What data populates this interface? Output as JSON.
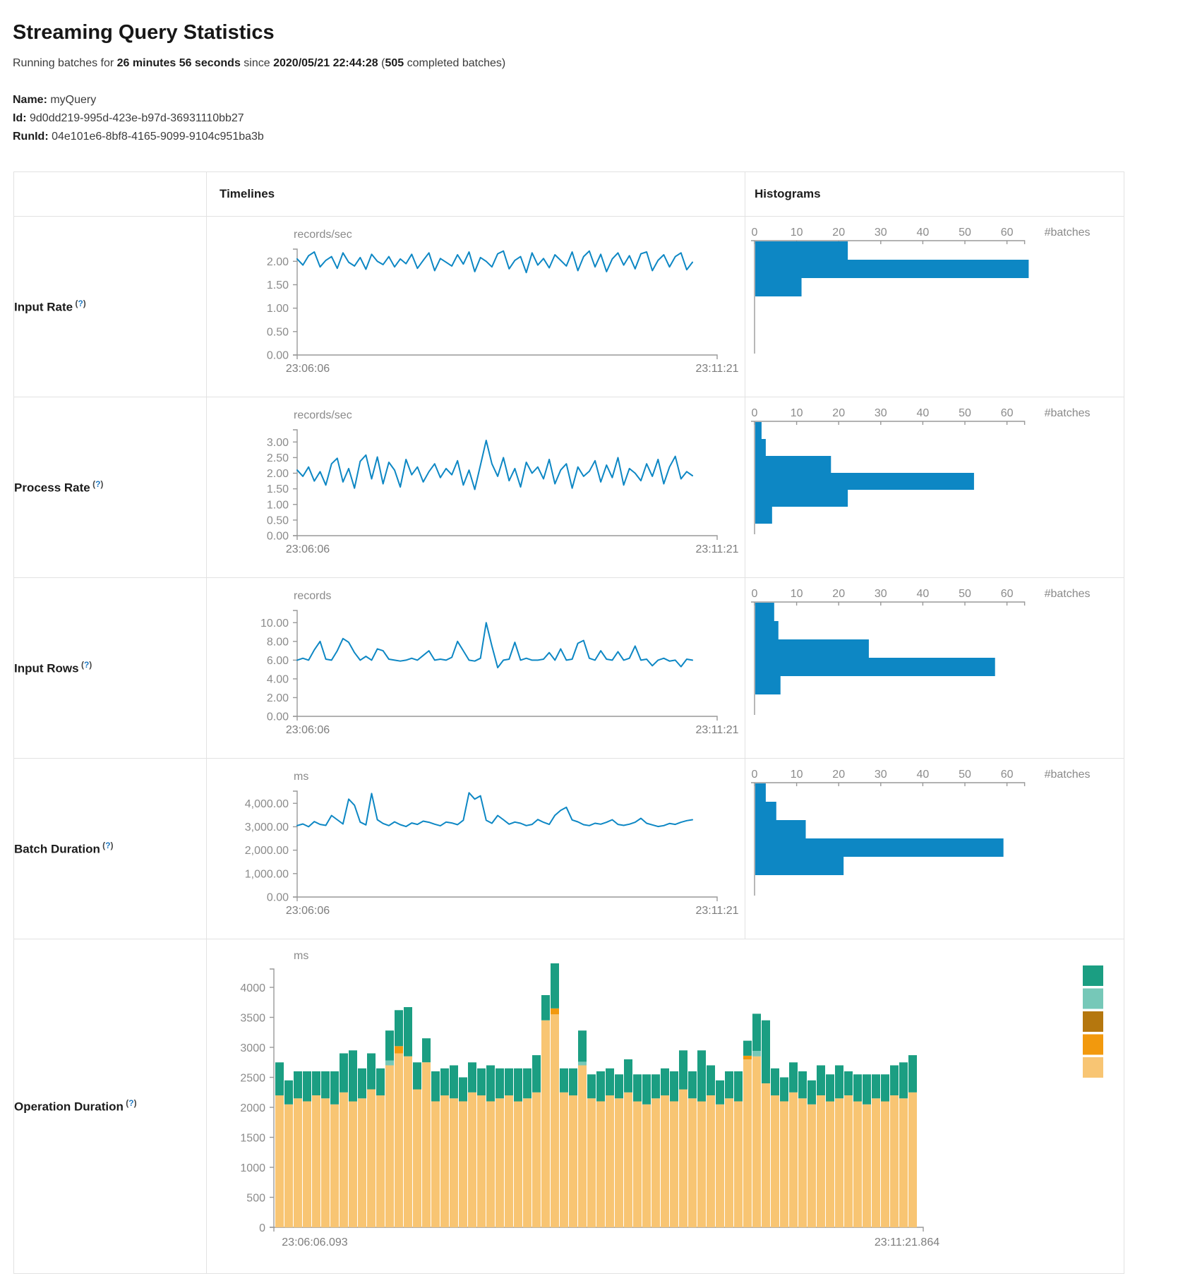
{
  "header": {
    "title": "Streaming Query Statistics",
    "subtitle_parts": [
      {
        "text": "Running batches for ",
        "bold": false
      },
      {
        "text": "26 minutes 56 seconds",
        "bold": true
      },
      {
        "text": " since ",
        "bold": false
      },
      {
        "text": "2020/05/21 22:44:28",
        "bold": true
      },
      {
        "text": " (",
        "bold": false
      },
      {
        "text": "505",
        "bold": true
      },
      {
        "text": " completed batches)",
        "bold": false
      }
    ],
    "meta": [
      {
        "label": "Name:",
        "value": "myQuery"
      },
      {
        "label": "Id:",
        "value": "9d0dd219-995d-423e-b97d-36931110bb27"
      },
      {
        "label": "RunId:",
        "value": "04e101e6-8bf8-4165-9099-9104c951ba3b"
      }
    ]
  },
  "table": {
    "timelines_header": "Timelines",
    "histograms_header": "Histograms"
  },
  "colors": {
    "blue": "#0d87c4",
    "axis_gray": "#999999",
    "teal": "#1b9e82",
    "light_teal": "#76c8b8",
    "brown": "#b5770e",
    "orange": "#f2990d",
    "tan": "#f8c573"
  },
  "chart_data": {
    "metric_rows": [
      {
        "label": "Input Rate",
        "help": "(?)",
        "timeline": {
          "type": "line",
          "unit": "records/sec",
          "x_start": "23:06:06",
          "x_end": "23:11:21",
          "ytick_labels": [
            "2.00",
            "1.50",
            "1.00",
            "0.50",
            "0.00"
          ],
          "ytick_values": [
            2,
            1.5,
            1,
            0.5,
            0
          ],
          "ymax": 2.26,
          "values": [
            2.05,
            1.92,
            2.12,
            2.2,
            1.88,
            2.02,
            2.1,
            1.85,
            2.18,
            1.98,
            1.9,
            2.08,
            1.83,
            2.15,
            2.0,
            1.93,
            2.1,
            1.88,
            2.05,
            1.95,
            2.15,
            1.85,
            2.02,
            2.18,
            1.8,
            2.06,
            1.98,
            1.9,
            2.14,
            1.94,
            2.2,
            1.78,
            2.08,
            2.0,
            1.88,
            2.16,
            2.22,
            1.84,
            2.02,
            2.1,
            1.76,
            2.18,
            1.92,
            2.06,
            1.86,
            2.14,
            2.02,
            1.9,
            2.2,
            1.8,
            2.1,
            2.22,
            1.88,
            2.15,
            1.78,
            2.05,
            2.18,
            1.92,
            2.12,
            1.84,
            2.16,
            2.2,
            1.8,
            2.02,
            2.14,
            1.88,
            2.1,
            2.18,
            1.82,
            1.98
          ]
        },
        "histogram": {
          "type": "bar",
          "axis_label": "#batches",
          "ticks": [
            0,
            10,
            20,
            30,
            40,
            50,
            60
          ],
          "values": [
            22,
            65,
            11
          ]
        }
      },
      {
        "label": "Process Rate",
        "help": "(?)",
        "timeline": {
          "type": "line",
          "unit": "records/sec",
          "x_start": "23:06:06",
          "x_end": "23:11:21",
          "ytick_labels": [
            "3.00",
            "2.50",
            "2.00",
            "1.50",
            "1.00",
            "0.50",
            "0.00"
          ],
          "ytick_values": [
            3,
            2.5,
            2,
            1.5,
            1,
            0.5,
            0
          ],
          "ymax": 3.39,
          "values": [
            2.1,
            1.9,
            2.2,
            1.75,
            2.05,
            1.62,
            2.3,
            2.48,
            1.72,
            2.15,
            1.52,
            2.38,
            2.58,
            1.82,
            2.52,
            1.66,
            2.35,
            2.1,
            1.56,
            2.44,
            1.95,
            2.2,
            1.72,
            2.05,
            2.3,
            1.86,
            2.15,
            1.95,
            2.4,
            1.62,
            2.1,
            1.48,
            2.26,
            3.05,
            2.3,
            1.9,
            2.5,
            1.76,
            2.15,
            1.56,
            2.35,
            2.0,
            2.2,
            1.82,
            2.44,
            1.66,
            2.1,
            2.3,
            1.52,
            2.2,
            1.9,
            2.06,
            2.4,
            1.72,
            2.26,
            1.86,
            2.5,
            1.62,
            2.15,
            2.0,
            1.76,
            2.3,
            1.9,
            2.44,
            1.66,
            2.2,
            2.54,
            1.82,
            2.05,
            1.92
          ]
        },
        "histogram": {
          "type": "bar",
          "axis_label": "#batches",
          "ticks": [
            0,
            10,
            20,
            30,
            40,
            50,
            60
          ],
          "values": [
            1.5,
            2.5,
            18,
            52,
            22,
            4
          ]
        }
      },
      {
        "label": "Input Rows",
        "help": "(?)",
        "timeline": {
          "type": "line",
          "unit": "records",
          "x_start": "23:06:06",
          "x_end": "23:11:21",
          "ytick_labels": [
            "10.00",
            "8.00",
            "6.00",
            "4.00",
            "2.00",
            "0.00"
          ],
          "ytick_values": [
            10,
            8,
            6,
            4,
            2,
            0
          ],
          "ymax": 11.3,
          "values": [
            6,
            6.2,
            6,
            7.1,
            8,
            6.1,
            6,
            7,
            8.3,
            7.9,
            6.8,
            6,
            6.4,
            6,
            7.2,
            7,
            6.1,
            6,
            5.9,
            6,
            6.2,
            6,
            6.5,
            7,
            6,
            6.1,
            6,
            6.3,
            8,
            7,
            6,
            5.9,
            6.2,
            10,
            7.5,
            5.2,
            6,
            6.1,
            7.9,
            6,
            6.2,
            6,
            6,
            6.1,
            6.8,
            6,
            7.2,
            6,
            6.1,
            7.8,
            8.1,
            6.2,
            6,
            7,
            6.1,
            6,
            6.9,
            6,
            6.2,
            7.5,
            6,
            6.1,
            5.4,
            6,
            6.2,
            5.9,
            6,
            5.3,
            6.1,
            6
          ]
        },
        "histogram": {
          "type": "bar",
          "axis_label": "#batches",
          "ticks": [
            0,
            10,
            20,
            30,
            40,
            50,
            60
          ],
          "values": [
            4.5,
            5.5,
            27,
            57,
            6
          ]
        }
      },
      {
        "label": "Batch Duration",
        "help": "(?)",
        "timeline": {
          "type": "line",
          "unit": "ms",
          "x_start": "23:06:06",
          "x_end": "23:11:21",
          "ytick_labels": [
            "4,000.00",
            "3,000.00",
            "2,000.00",
            "1,000.00",
            "0.00"
          ],
          "ytick_values": [
            4000,
            3000,
            2000,
            1000,
            0
          ],
          "ymax": 4520,
          "values": [
            3050,
            3120,
            3000,
            3220,
            3100,
            3060,
            3480,
            3300,
            3120,
            4180,
            3920,
            3200,
            3080,
            4420,
            3300,
            3140,
            3050,
            3210,
            3090,
            3010,
            3160,
            3100,
            3240,
            3190,
            3110,
            3040,
            3200,
            3160,
            3090,
            3280,
            4450,
            4180,
            4320,
            3280,
            3150,
            3480,
            3300,
            3110,
            3200,
            3150,
            3050,
            3100,
            3310,
            3190,
            3100,
            3490,
            3700,
            3830,
            3290,
            3210,
            3090,
            3050,
            3150,
            3110,
            3190,
            3300,
            3100,
            3060,
            3110,
            3190,
            3360,
            3150,
            3080,
            3010,
            3050,
            3140,
            3100,
            3190,
            3260,
            3300
          ]
        },
        "histogram": {
          "type": "bar",
          "axis_label": "#batches",
          "ticks": [
            0,
            10,
            20,
            30,
            40,
            50,
            60
          ],
          "values": [
            2.5,
            5,
            12,
            59,
            21
          ]
        }
      }
    ],
    "operation_duration": {
      "label": "Operation Duration",
      "help": "(?)",
      "type": "stacked-bar",
      "unit": "ms",
      "x_start": "23:06:06.093",
      "x_end": "23:11:21.864",
      "ytick_labels": [
        "4000",
        "3500",
        "3000",
        "2500",
        "2000",
        "1500",
        "1000",
        "500",
        "0"
      ],
      "ytick_values": [
        4000,
        3500,
        3000,
        2500,
        2000,
        1500,
        1000,
        500,
        0
      ],
      "ymax": 4800,
      "legend_colors": [
        "#1b9e82",
        "#76c8b8",
        "#b5770e",
        "#f2990d",
        "#f8c573"
      ],
      "series": [
        {
          "name": "tan",
          "color": "#f8c573",
          "values": [
            2200,
            2050,
            2150,
            2100,
            2200,
            2150,
            2050,
            2250,
            2100,
            2150,
            2300,
            2200,
            2700,
            2900,
            2850,
            2300,
            2750,
            2100,
            2200,
            2150,
            2100,
            2250,
            2200,
            2100,
            2150,
            2200,
            2100,
            2150,
            2250,
            3450,
            3550,
            2250,
            2200,
            2700,
            2150,
            2100,
            2200,
            2150,
            2250,
            2100,
            2050,
            2150,
            2200,
            2100,
            2300,
            2150,
            2100,
            2200,
            2050,
            2150,
            2100,
            2800,
            2850,
            2400,
            2200,
            2100,
            2250,
            2150,
            2050,
            2200,
            2100,
            2150,
            2200,
            2100,
            2050,
            2150,
            2100,
            2200,
            2150,
            2250
          ]
        },
        {
          "name": "orange",
          "color": "#f2990d",
          "values": [
            0,
            0,
            0,
            0,
            0,
            0,
            0,
            0,
            0,
            0,
            0,
            0,
            0,
            120,
            0,
            0,
            0,
            0,
            0,
            0,
            0,
            0,
            0,
            0,
            0,
            0,
            0,
            0,
            0,
            0,
            100,
            0,
            0,
            0,
            0,
            0,
            0,
            0,
            0,
            0,
            0,
            0,
            0,
            0,
            0,
            0,
            0,
            0,
            0,
            0,
            0,
            60,
            0,
            0,
            0,
            0,
            0,
            0,
            0,
            0,
            0,
            0,
            0,
            0,
            0,
            0,
            0,
            0,
            0,
            0
          ]
        },
        {
          "name": "brown",
          "color": "#b5770e",
          "values": [
            0,
            0,
            0,
            0,
            0,
            0,
            0,
            0,
            0,
            0,
            0,
            0,
            0,
            0,
            0,
            0,
            0,
            0,
            0,
            0,
            0,
            0,
            0,
            0,
            0,
            0,
            0,
            0,
            0,
            0,
            0,
            0,
            0,
            0,
            0,
            0,
            0,
            0,
            0,
            0,
            0,
            0,
            0,
            0,
            0,
            0,
            0,
            0,
            0,
            0,
            0,
            0,
            0,
            0,
            0,
            0,
            0,
            0,
            0,
            0,
            0,
            0,
            0,
            0,
            0,
            0,
            0,
            0,
            0,
            0
          ]
        },
        {
          "name": "light-teal",
          "color": "#76c8b8",
          "values": [
            0,
            0,
            0,
            0,
            0,
            0,
            0,
            0,
            0,
            0,
            0,
            0,
            80,
            0,
            0,
            0,
            0,
            0,
            0,
            0,
            0,
            0,
            0,
            0,
            0,
            0,
            0,
            0,
            0,
            0,
            0,
            0,
            0,
            60,
            0,
            0,
            0,
            0,
            0,
            0,
            0,
            0,
            0,
            0,
            0,
            0,
            0,
            0,
            0,
            0,
            0,
            0,
            90,
            0,
            0,
            0,
            0,
            0,
            0,
            0,
            0,
            0,
            0,
            0,
            0,
            0,
            0,
            0,
            0,
            0
          ]
        },
        {
          "name": "teal",
          "color": "#1b9e82",
          "values": [
            550,
            400,
            450,
            500,
            400,
            450,
            550,
            650,
            850,
            500,
            600,
            450,
            500,
            600,
            820,
            450,
            400,
            500,
            450,
            550,
            400,
            500,
            450,
            600,
            500,
            450,
            550,
            500,
            620,
            420,
            750,
            400,
            450,
            520,
            400,
            500,
            450,
            400,
            550,
            450,
            500,
            400,
            450,
            500,
            650,
            450,
            850,
            500,
            400,
            450,
            500,
            250,
            620,
            1050,
            450,
            400,
            500,
            450,
            400,
            500,
            450,
            550,
            400,
            450,
            500,
            400,
            450,
            500,
            600,
            620
          ]
        }
      ]
    }
  }
}
